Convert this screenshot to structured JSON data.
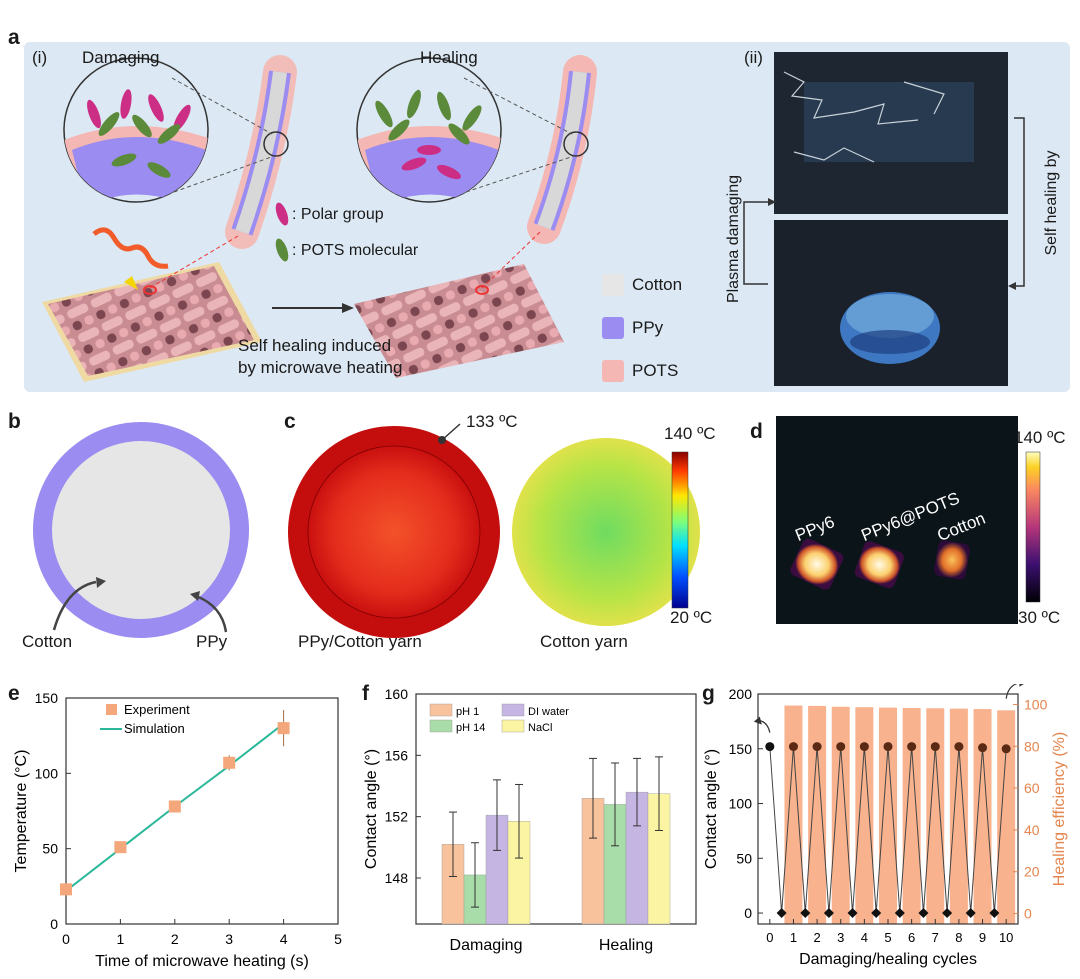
{
  "panel_labels": {
    "a": "a",
    "b": "b",
    "c": "c",
    "d": "d",
    "e": "e",
    "f": "f",
    "g": "g"
  },
  "panel_a": {
    "sub_i": "(i)",
    "sub_ii": "(ii)",
    "damaging": "Damaging",
    "healing": "Healing",
    "legend_polar": ": Polar group",
    "legend_pots_mol": ": POTS molecular",
    "self_healing_1": "Self healing induced",
    "self_healing_2": "by microwave heating",
    "mat_legend": [
      "Cotton",
      "PPy",
      "POTS"
    ],
    "mat_colors": [
      "#e6e6e6",
      "#9a8cf0",
      "#f4b7b3"
    ],
    "plasma_damaging": "Plasma damaging",
    "self_healing_by": "Self healing by"
  },
  "panel_b": {
    "cotton": "Cotton",
    "ppy": "PPy"
  },
  "panel_c": {
    "temp_marker": "133 ºC",
    "left_caption": "PPy/Cotton yarn",
    "right_caption": "Cotton yarn",
    "scale_max": "140 ºC",
    "scale_min": "20 ºC"
  },
  "panel_d": {
    "scale_max": "140 ºC",
    "scale_min": "30 ºC",
    "labels": [
      "PPy6",
      "PPy6@POTS",
      "Cotton"
    ]
  },
  "chart_data": [
    {
      "panel": "e",
      "type": "scatter",
      "xlabel": "Time of microwave heating (s)",
      "ylabel": "Temperature (°C)",
      "xlim": [
        0,
        5
      ],
      "ylim": [
        0,
        150
      ],
      "xticks": [
        "0",
        "1",
        "2",
        "3",
        "4",
        "5"
      ],
      "yticks": [
        "0",
        "50",
        "100",
        "150"
      ],
      "series": [
        {
          "name": "Experiment",
          "x": [
            0,
            1,
            2,
            3,
            4
          ],
          "y": [
            23,
            51,
            78,
            107,
            130
          ],
          "err": [
            2,
            3,
            3,
            5,
            12
          ],
          "color": "#f4a77a"
        },
        {
          "name": "Simulation",
          "x": [
            0,
            1,
            2,
            3,
            4
          ],
          "y": [
            22,
            50,
            78,
            105,
            133
          ],
          "color": "#2bb89a"
        }
      ]
    },
    {
      "panel": "f",
      "type": "bar",
      "ylabel": "Contact angle (°)",
      "ylim": [
        145,
        160
      ],
      "yticks": [
        "148",
        "152",
        "156",
        "160"
      ],
      "categories": [
        "Damaging",
        "Healing"
      ],
      "series": [
        {
          "name": "pH 1",
          "values": [
            150.2,
            153.2
          ],
          "err": [
            2.1,
            2.6
          ],
          "color": "#f8c39c"
        },
        {
          "name": "pH 14",
          "values": [
            148.2,
            152.8
          ],
          "err": [
            2.1,
            2.7
          ],
          "color": "#a8dca8"
        },
        {
          "name": "DI water",
          "values": [
            152.1,
            153.6
          ],
          "err": [
            2.3,
            2.2
          ],
          "color": "#c5b5e3"
        },
        {
          "name": "NaCl",
          "values": [
            151.7,
            153.5
          ],
          "err": [
            2.4,
            2.4
          ],
          "color": "#fbf5a3"
        }
      ]
    },
    {
      "panel": "g",
      "type": "line",
      "xlabel": "Damaging/healing cycles",
      "ylabel": "Contact angle (°)",
      "y2label": "Healing efficiency (%)",
      "ylim": [
        -10,
        200
      ],
      "y2lim": [
        -5,
        105
      ],
      "xticks": [
        "0",
        "1",
        "2",
        "3",
        "4",
        "5",
        "6",
        "7",
        "8",
        "9",
        "10"
      ],
      "yticks": [
        "0",
        "50",
        "100",
        "150",
        "200"
      ],
      "y2ticks": [
        "0",
        "20",
        "40",
        "60",
        "80",
        "100"
      ],
      "healed": {
        "x": [
          0,
          1,
          2,
          3,
          4,
          5,
          6,
          7,
          8,
          9,
          10
        ],
        "y": [
          152,
          152,
          152,
          152,
          152,
          152,
          152,
          152,
          152,
          151,
          150
        ]
      },
      "damaged": {
        "x": [
          0.5,
          1.5,
          2.5,
          3.5,
          4.5,
          5.5,
          6.5,
          7.5,
          8.5,
          9.5
        ],
        "y": [
          0,
          0,
          0,
          0,
          0,
          0,
          0,
          0,
          0,
          0
        ]
      },
      "efficiency": {
        "x": [
          1,
          2,
          3,
          4,
          5,
          6,
          7,
          8,
          9,
          10
        ],
        "values": [
          99.5,
          99.3,
          98.9,
          98.7,
          98.5,
          98.3,
          98.2,
          98.0,
          97.8,
          97.2
        ],
        "color": "#f7a67a"
      }
    }
  ]
}
